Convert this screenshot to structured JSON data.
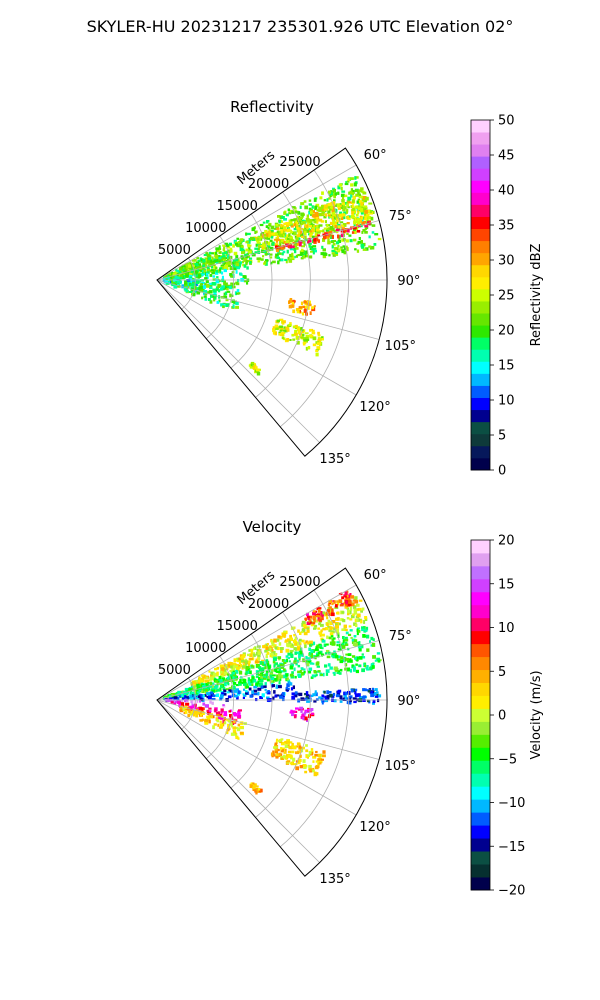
{
  "figure_title": "SKYLER-HU  20231217  235301.926 UTC Elevation 02°",
  "colors": {
    "reflectivity_colormap": [
      "#00004c",
      "#06185b",
      "#0e3a3a",
      "#0b4f43",
      "#00008f",
      "#0000ff",
      "#005cff",
      "#00b8ff",
      "#00ffff",
      "#00ffb0",
      "#00ff66",
      "#2ee800",
      "#66e600",
      "#99ee00",
      "#ccff00",
      "#ffee00",
      "#ffd700",
      "#ffa500",
      "#ff7f00",
      "#ff4500",
      "#ff0000",
      "#ff0066",
      "#ff00cc",
      "#ff00ff",
      "#d040ff",
      "#b060ff",
      "#e080f0",
      "#f0a0f0",
      "#ffd0ff"
    ],
    "velocity_colormap": [
      "#00004c",
      "#063030",
      "#0b4f43",
      "#00008f",
      "#0000ff",
      "#005cff",
      "#00b8ff",
      "#00ffff",
      "#00ffb0",
      "#00ff66",
      "#00ff00",
      "#55ee00",
      "#99ee33",
      "#ccff33",
      "#ffee00",
      "#ffd700",
      "#ffb000",
      "#ff8800",
      "#ff5500",
      "#ff0000",
      "#ff0066",
      "#ff00cc",
      "#ff00ff",
      "#d040ff",
      "#c070ff",
      "#e0a0f0",
      "#ffd0ff"
    ]
  },
  "chart_data": [
    {
      "type": "heatmap",
      "projection": "polar-sector",
      "title": "Reflectivity",
      "radial_label": "Meters",
      "radial_ticks": [
        5000,
        10000,
        15000,
        20000,
        25000
      ],
      "radial_tick_labels": [
        "5000",
        "10000",
        "15000",
        "20000",
        "25000"
      ],
      "radial_max_m": 30000,
      "azimuth_range_deg": [
        55,
        140
      ],
      "azimuth_ticks": [
        60,
        75,
        90,
        105,
        120,
        135
      ],
      "azimuth_tick_labels": [
        "60°",
        "75°",
        "90°",
        "105°",
        "120°",
        "135°"
      ],
      "colorbar": {
        "label": "Reflectivity dBZ",
        "range": [
          0,
          50
        ],
        "ticks": [
          0,
          5,
          10,
          15,
          20,
          25,
          30,
          35,
          40,
          45,
          50
        ],
        "tick_labels": [
          "0",
          "5",
          "10",
          "15",
          "20",
          "25",
          "30",
          "35",
          "40",
          "45",
          "50"
        ]
      },
      "grid": true,
      "echo_features": [
        {
          "az": [
            62,
            82
          ],
          "r": [
            1000,
            29500
          ],
          "value": 21
        },
        {
          "az": [
            66,
            74
          ],
          "r": [
            14000,
            29500
          ],
          "value": 26
        },
        {
          "az": [
            74.5,
            76.5
          ],
          "r": [
            16000,
            29000
          ],
          "value": 34
        },
        {
          "az": [
            80,
            92
          ],
          "r": [
            800,
            12000
          ],
          "value": 18
        },
        {
          "az": [
            90,
            106
          ],
          "r": [
            1000,
            8000
          ],
          "value": 15
        },
        {
          "az": [
            92,
            112
          ],
          "r": [
            2000,
            11000
          ],
          "value": 19
        },
        {
          "az": [
            98,
            103
          ],
          "r": [
            17500,
            21000
          ],
          "value": 30
        },
        {
          "az": [
            108,
            115
          ],
          "r": [
            16500,
            23000
          ],
          "value": 25
        },
        {
          "az": [
            131,
            133
          ],
          "r": [
            16500,
            18000
          ],
          "value": 24
        }
      ]
    },
    {
      "type": "heatmap",
      "projection": "polar-sector",
      "title": "Velocity",
      "radial_label": "Meters",
      "radial_ticks": [
        5000,
        10000,
        15000,
        20000,
        25000
      ],
      "radial_tick_labels": [
        "5000",
        "10000",
        "15000",
        "20000",
        "25000"
      ],
      "radial_max_m": 30000,
      "azimuth_range_deg": [
        55,
        140
      ],
      "azimuth_ticks": [
        60,
        75,
        90,
        105,
        120,
        135
      ],
      "azimuth_tick_labels": [
        "60°",
        "75°",
        "90°",
        "105°",
        "120°",
        "135°"
      ],
      "colorbar": {
        "label": "Velocity (m/s)",
        "range": [
          -20,
          20
        ],
        "ticks": [
          -20,
          -15,
          -10,
          -5,
          0,
          5,
          10,
          15,
          20
        ],
        "tick_labels": [
          "−20",
          "−15",
          "−10",
          "−5",
          "0",
          "5",
          "10",
          "15",
          "20"
        ]
      },
      "grid": true,
      "echo_features": [
        {
          "az": [
            62,
            70
          ],
          "r": [
            5000,
            29500
          ],
          "value": 1
        },
        {
          "az": [
            70,
            82
          ],
          "r": [
            1000,
            29500
          ],
          "value": -5
        },
        {
          "az": [
            60,
            64
          ],
          "r": [
            22000,
            29000
          ],
          "value": 8
        },
        {
          "az": [
            82,
            90
          ],
          "r": [
            1000,
            18000
          ],
          "value": -12
        },
        {
          "az": [
            87,
            91
          ],
          "r": [
            18000,
            29000
          ],
          "value": -13
        },
        {
          "az": [
            90,
            97
          ],
          "r": [
            1000,
            9000
          ],
          "value": 16
        },
        {
          "az": [
            97,
            108
          ],
          "r": [
            2000,
            11000
          ],
          "value": 11
        },
        {
          "az": [
            93,
            98
          ],
          "r": [
            17500,
            20500
          ],
          "value": 12
        },
        {
          "az": [
            104,
            116
          ],
          "r": [
            3000,
            12000
          ],
          "value": 3
        },
        {
          "az": [
            107,
            116
          ],
          "r": [
            16500,
            23000
          ],
          "value": 3
        },
        {
          "az": [
            131,
            133
          ],
          "r": [
            16500,
            18000
          ],
          "value": 4
        }
      ]
    }
  ]
}
